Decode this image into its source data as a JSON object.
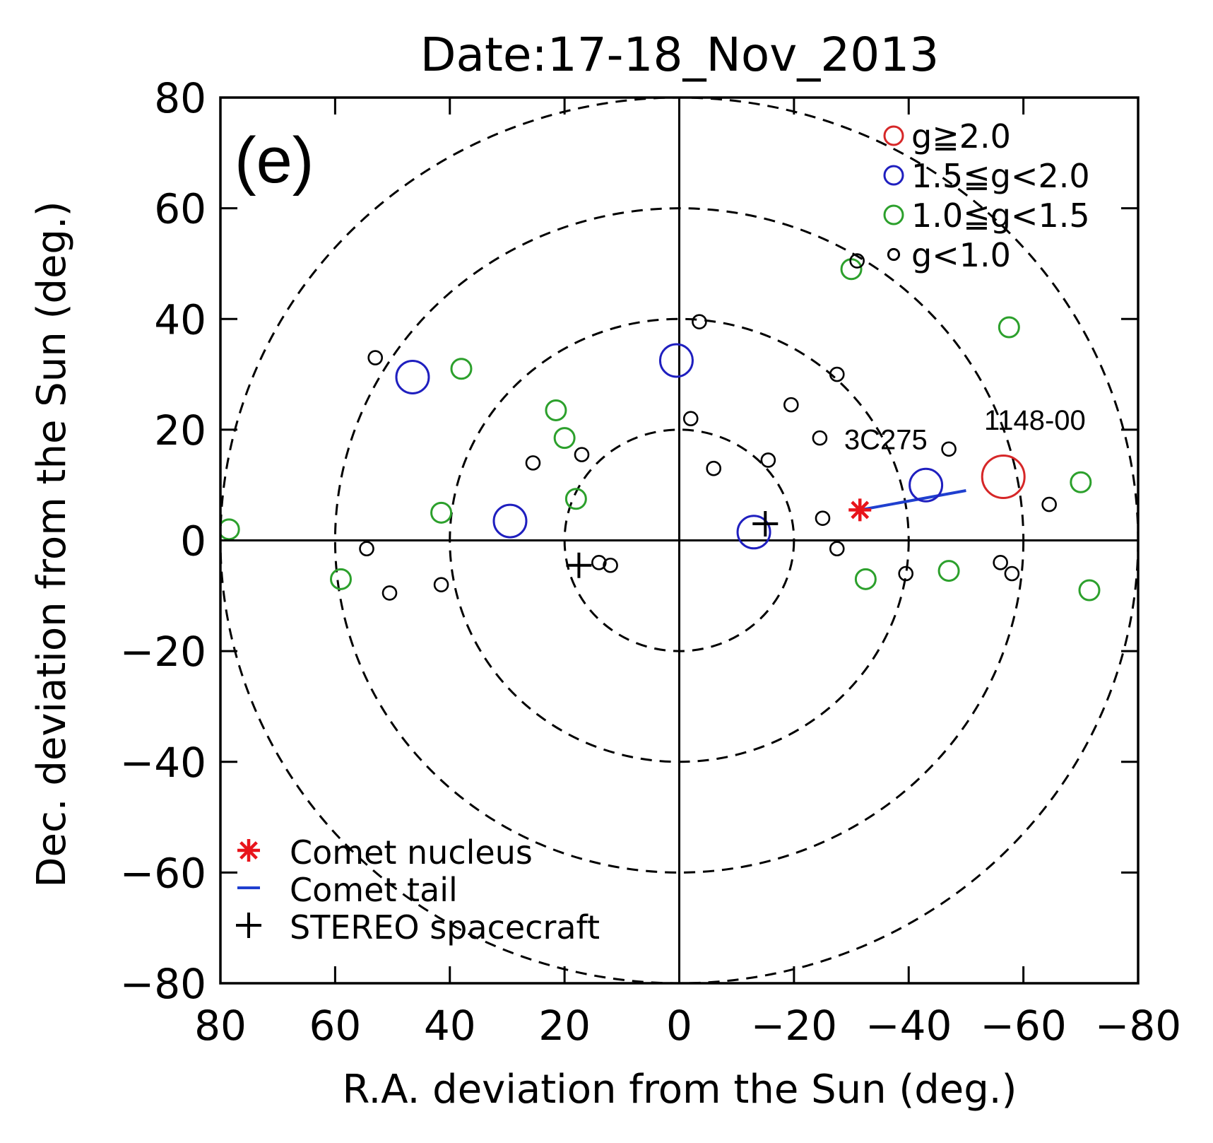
{
  "chart_data": {
    "type": "scatter",
    "title": "Date:17-18_Nov_2013",
    "panel_label": "(e)",
    "xlabel": "R.A. deviation from the Sun (deg.)",
    "ylabel": "Dec. deviation from the Sun (deg.)",
    "xlim": [
      80,
      -80
    ],
    "ylim": [
      -80,
      80
    ],
    "x_ticks": [
      "80",
      "60",
      "40",
      "20",
      "0",
      "−20",
      "−40",
      "−60",
      "−80"
    ],
    "x_tick_values": [
      80,
      60,
      40,
      20,
      0,
      -20,
      -40,
      -60,
      -80
    ],
    "y_ticks": [
      "80",
      "60",
      "40",
      "20",
      "0",
      "−20",
      "−40",
      "−60",
      "−80"
    ],
    "y_tick_values": [
      80,
      60,
      40,
      20,
      0,
      -20,
      -40,
      -60,
      -80
    ],
    "grid": false,
    "elongation_circles": [
      20,
      40,
      60,
      80
    ],
    "series": [
      {
        "name": "g≧2.0",
        "color": "#d62728",
        "size": "large",
        "points": [
          [
            -56.5,
            11.5
          ]
        ]
      },
      {
        "name": "1.5≦g<2.0",
        "color": "#1f1fbf",
        "size": "medium",
        "points": [
          [
            46.5,
            29.5
          ],
          [
            0.5,
            32.5
          ],
          [
            29.5,
            3.5
          ],
          [
            -13,
            1.5
          ],
          [
            -43,
            10
          ]
        ]
      },
      {
        "name": "1.0≦g<1.5",
        "color": "#2ca02c",
        "size": "small",
        "points": [
          [
            -30,
            49
          ],
          [
            -57.5,
            38.5
          ],
          [
            38,
            31
          ],
          [
            21.5,
            23.5
          ],
          [
            20,
            18.5
          ],
          [
            18,
            7.5
          ],
          [
            41.5,
            5
          ],
          [
            78.5,
            2
          ],
          [
            59,
            -7
          ],
          [
            -32.5,
            -7
          ],
          [
            -47,
            -5.5
          ],
          [
            -70,
            10.5
          ],
          [
            -71.5,
            -9
          ]
        ]
      },
      {
        "name": "g<1.0",
        "color": "#000000",
        "size": "tiny",
        "points": [
          [
            -31,
            50.5
          ],
          [
            -3.5,
            39.5
          ],
          [
            53,
            33
          ],
          [
            -27.5,
            30
          ],
          [
            -19.5,
            24.5
          ],
          [
            -2,
            22
          ],
          [
            -24.5,
            18.5
          ],
          [
            -15.5,
            14.5
          ],
          [
            -6,
            13
          ],
          [
            25.5,
            14
          ],
          [
            17,
            15.5
          ],
          [
            -25,
            4
          ],
          [
            -47,
            16.5
          ],
          [
            -64.5,
            6.5
          ],
          [
            54.5,
            -1.5
          ],
          [
            -27.5,
            -1.5
          ],
          [
            50.5,
            -9.5
          ],
          [
            41.5,
            -8
          ],
          [
            14,
            -4
          ],
          [
            12,
            -4.5
          ],
          [
            -39.5,
            -6
          ],
          [
            -56,
            -4
          ],
          [
            -58,
            -6
          ]
        ]
      }
    ],
    "comet_nucleus": {
      "name": "Comet nucleus",
      "color": "#e8141b",
      "point": [
        -31.5,
        5.5
      ]
    },
    "comet_tail": {
      "name": "Comet tail",
      "color": "#1f3fcf",
      "from": [
        -31.5,
        5.5
      ],
      "to": [
        -50,
        9
      ]
    },
    "stereo": {
      "name": "STEREO spacecraft",
      "points": [
        [
          -15,
          3
        ],
        [
          17.5,
          -4.5
        ]
      ]
    },
    "annotations": [
      {
        "text": "3C275",
        "x": -36,
        "y": 16.5
      },
      {
        "text": "1148-00",
        "x": -62,
        "y": 20
      }
    ],
    "legend_position": "top-right"
  }
}
